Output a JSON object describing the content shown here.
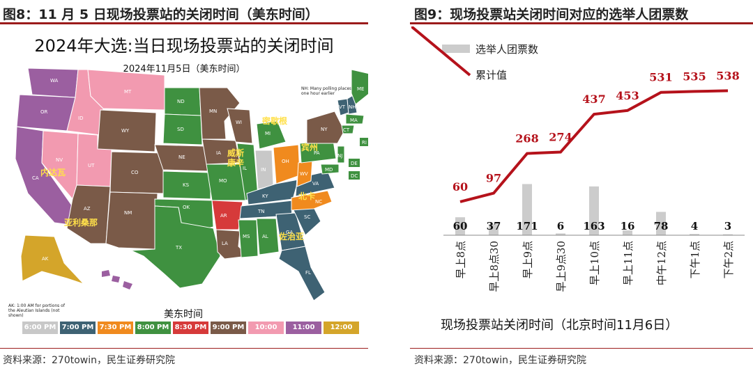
{
  "left_panel": {
    "header": "图8：11 月 5 日现场投票站的关闭时间（美东时间）",
    "map_title": "2024年大选:当日现场投票站的关闭时间",
    "map_subtitle": "2024年11月5日（美东时间）",
    "note_nh": "NH: Many polling places close one hour earlier",
    "note_ak": "AK: 1:00 AM for portions of the Aleutian Islands (not shown)",
    "legend_title": "美东时间",
    "legend": [
      {
        "label": "6:00 PM",
        "color": "#c8c8c8"
      },
      {
        "label": "7:00 PM",
        "color": "#3e6273"
      },
      {
        "label": "7:30 PM",
        "color": "#f08a1e"
      },
      {
        "label": "8:00 PM",
        "color": "#3f9140"
      },
      {
        "label": "8:30 PM",
        "color": "#d63a3a"
      },
      {
        "label": "9:00 PM",
        "color": "#7a5a48"
      },
      {
        "label": "10:00 PM",
        "color": "#f29ab0"
      },
      {
        "label": "11:00 PM",
        "color": "#9b5fa0"
      },
      {
        "label": "12:00 AM",
        "color": "#d4a52a"
      }
    ],
    "state_labels": [
      "WA",
      "OR",
      "CA",
      "NV",
      "ID",
      "MT",
      "WY",
      "UT",
      "AZ",
      "CO",
      "NM",
      "ND",
      "SD",
      "NE",
      "KS",
      "OK",
      "TX",
      "MN",
      "IA",
      "MO",
      "AR",
      "LA",
      "WI",
      "IL",
      "MI",
      "IN",
      "OH",
      "KY",
      "TN",
      "MS",
      "AL",
      "GA",
      "FL",
      "SC",
      "NC",
      "VA",
      "WV",
      "PA",
      "NY",
      "VT",
      "NH",
      "ME",
      "MA",
      "CT",
      "RI",
      "NJ",
      "DE",
      "MD",
      "DC",
      "AK",
      "HI"
    ],
    "cn_labels": {
      "nevada": "内达瓦",
      "arizona": "亚利桑那",
      "wisconsin": "威斯\n康辛",
      "michigan": "密歇根",
      "pennsylvania": "宾州",
      "north_carolina": "北卡",
      "georgia": "佐治亚"
    },
    "source": "资料来源：270towin，民生证券研究院"
  },
  "right_panel": {
    "header": "图9：现场投票站关闭时间对应的选举人团票数",
    "x_title": "现场投票站关闭时间（北京时间11月6日）",
    "source": "资料来源：270towin，民生证券研究院"
  },
  "chart_data": {
    "type": "bar",
    "title": "",
    "xlabel": "现场投票站关闭时间（北京时间11月6日）",
    "ylabel": "",
    "categories": [
      "早上8点",
      "早上8点30",
      "早上9点",
      "早上9点30",
      "早上10点",
      "早上11点",
      "中午12点",
      "下午1点",
      "下午2点"
    ],
    "series": [
      {
        "name": "选举人团票数",
        "kind": "bar",
        "color": "#cccccc",
        "values": [
          60,
          37,
          171,
          6,
          163,
          16,
          78,
          4,
          3
        ]
      },
      {
        "name": "累计值",
        "kind": "line",
        "color": "#b5121b",
        "values": [
          60,
          97,
          268,
          274,
          437,
          453,
          531,
          535,
          538
        ]
      }
    ],
    "ylim": [
      0,
      560
    ],
    "legend_position": "top-left",
    "grid": false
  }
}
